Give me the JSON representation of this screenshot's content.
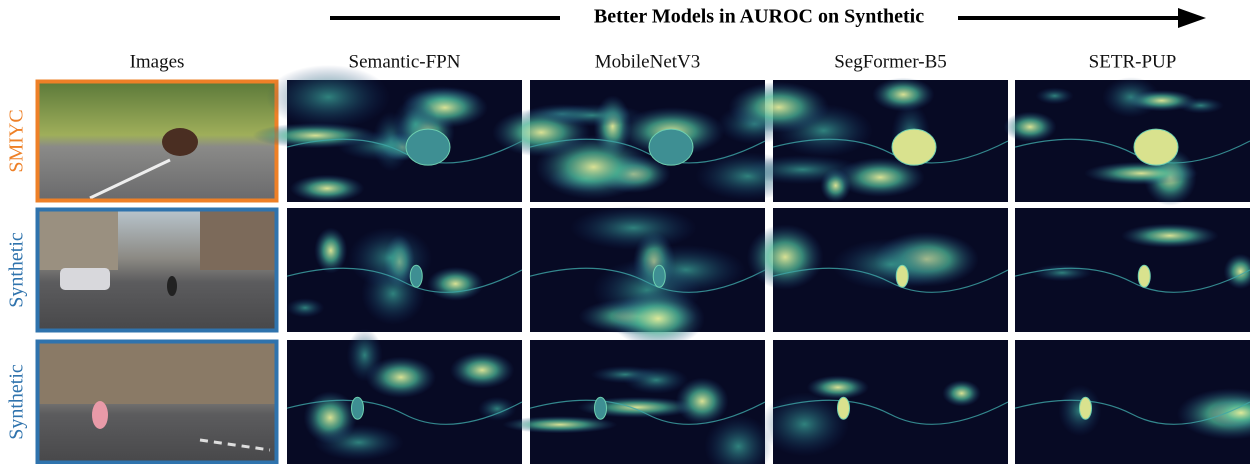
{
  "header": {
    "arrow_label": "Better Models in AUROC on Synthetic"
  },
  "columns": [
    "Images",
    "Semantic-FPN",
    "MobileNetV3",
    "SegFormer-B5",
    "SETR-PUP"
  ],
  "rows": [
    {
      "label": "SMIYC"
    },
    {
      "label": "Synthetic"
    },
    {
      "label": "Synthetic"
    }
  ]
}
